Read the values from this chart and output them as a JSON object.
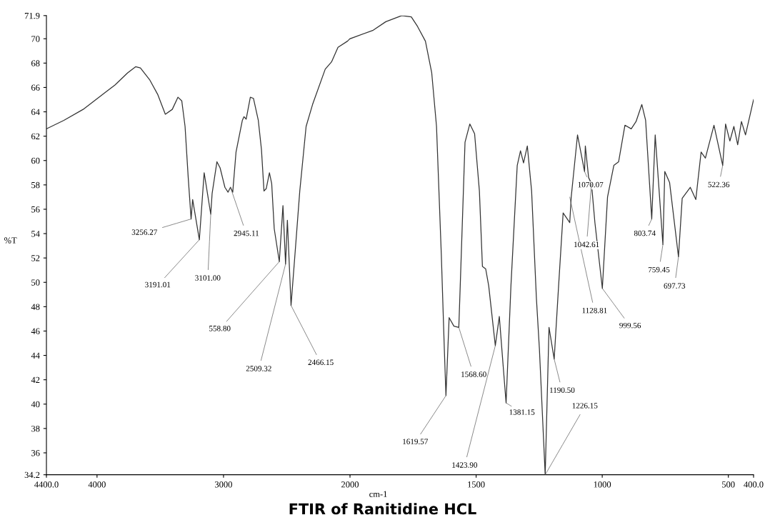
{
  "chart_data": [
    {
      "type": "line",
      "title": "FTIR of Ranitidine HCL",
      "ylabel": "%T",
      "xlim": [
        4400,
        2000
      ],
      "ylim": [
        34.2,
        71.9
      ],
      "xticks": [
        {
          "value": 4400,
          "label": "4400.0"
        },
        4000,
        3000
      ],
      "yticks": [
        34.2,
        36,
        38,
        40,
        42,
        44,
        46,
        48,
        50,
        52,
        54,
        56,
        58,
        60,
        62,
        64,
        66,
        68,
        70,
        71.9
      ],
      "marker": "none",
      "line_style": "solid",
      "series": [
        {
          "color": "#333333",
          "x": [
            4400,
            4262,
            4110,
            3934,
            3858,
            3758,
            3695,
            3657,
            3582,
            3519,
            3460,
            3405,
            3360,
            3330,
            3304,
            3279,
            3256.27,
            3244,
            3191.01,
            3153,
            3101,
            3090,
            3052,
            3027,
            2989,
            2964,
            2945.11,
            2927,
            2901,
            2851,
            2838,
            2821,
            2788,
            2763,
            2725,
            2700,
            2680,
            2662,
            2637,
            2619,
            2599,
            2558.8,
            2530,
            2509.32,
            2495,
            2466.15,
            2435,
            2397,
            2347,
            2296,
            2196,
            2146,
            2095,
            2020,
            2000
          ],
          "values": [
            62.6,
            63.3,
            64.2,
            65.6,
            66.2,
            67.2,
            67.7,
            67.6,
            66.6,
            65.4,
            63.8,
            64.2,
            65.2,
            64.9,
            62.8,
            58.6,
            55.2,
            56.8,
            53.5,
            59.0,
            55.6,
            57.3,
            59.9,
            59.4,
            57.8,
            57.4,
            57.8,
            57.4,
            60.7,
            63.3,
            63.6,
            63.4,
            65.2,
            65.1,
            63.3,
            60.9,
            57.5,
            57.7,
            59.0,
            58.1,
            54.4,
            51.7,
            56.3,
            51.5,
            55.1,
            48.1,
            52.3,
            57.5,
            62.8,
            64.6,
            67.5,
            68.1,
            69.3,
            69.8,
            70.0
          ]
        }
      ],
      "annotations": [
        {
          "text": "3256.27",
          "x": 3256.27,
          "y": 55.2
        },
        {
          "text": "3191.01",
          "x": 3191.01,
          "y": 53.5
        },
        {
          "text": "3101.00",
          "x": 3101,
          "y": 55.6
        },
        {
          "text": "2945.11",
          "x": 2945.11,
          "y": 57.8
        },
        {
          "text": "558.80",
          "x": 2558.8,
          "y": 51.7
        },
        {
          "text": "2509.32",
          "x": 2509.32,
          "y": 51.5
        },
        {
          "text": "2466.15",
          "x": 2466.15,
          "y": 48.1
        }
      ]
    },
    {
      "type": "line",
      "xlabel": "cm-1",
      "tick_labels": "x",
      "xlim": [
        2000,
        400
      ],
      "ylim": [
        34.2,
        71.9
      ],
      "xticks": [
        2000,
        1500,
        1000,
        500,
        {
          "value": 400,
          "label": "400.0"
        }
      ],
      "marker": "none",
      "line_style": "solid",
      "series": [
        {
          "color": "#333333",
          "x": [
            2000,
            1908,
            1858,
            1795,
            1757,
            1732,
            1701,
            1676,
            1657,
            1638,
            1626,
            1619.57,
            1607,
            1588,
            1568.6,
            1563,
            1544,
            1525,
            1506,
            1487,
            1475,
            1462,
            1450,
            1423.9,
            1408,
            1393,
            1381.15,
            1362,
            1337,
            1324,
            1312,
            1297,
            1280,
            1261,
            1249,
            1226.15,
            1211,
            1190.5,
            1173,
            1155,
            1128.81,
            1123,
            1098,
            1070.07,
            1067,
            1054,
            1042.61,
            1029,
            999.56,
            979,
            954,
            935,
            910,
            885,
            866,
            843,
            828,
            803.74,
            790,
            759.45,
            752,
            733,
            697.73,
            683,
            651,
            629,
            608,
            591,
            557,
            522.36,
            511,
            494,
            478,
            463,
            448,
            432,
            400
          ],
          "values": [
            70.0,
            70.7,
            71.4,
            71.9,
            71.8,
            71.0,
            69.8,
            67.2,
            62.8,
            52.3,
            44.5,
            40.7,
            47.1,
            46.4,
            46.3,
            49.7,
            61.5,
            63.0,
            62.2,
            57.5,
            51.3,
            51.1,
            49.7,
            44.8,
            47.2,
            43.2,
            40.1,
            49.7,
            59.6,
            60.8,
            59.8,
            61.2,
            57.5,
            48.7,
            44.5,
            34.2,
            46.3,
            43.7,
            49.7,
            55.7,
            54.9,
            57.0,
            62.1,
            59.1,
            61.2,
            58.6,
            58.1,
            54.9,
            49.5,
            57.0,
            59.6,
            59.9,
            62.9,
            62.6,
            63.2,
            64.6,
            63.3,
            55.2,
            62.1,
            53.1,
            59.1,
            58.2,
            52.1,
            56.9,
            57.8,
            56.8,
            60.7,
            60.2,
            62.9,
            59.6,
            63.0,
            61.6,
            62.8,
            61.3,
            63.2,
            62.1,
            65.0
          ]
        }
      ],
      "annotations": [
        {
          "text": "1619.57",
          "x": 1619.57,
          "y": 40.7
        },
        {
          "text": "1568.60",
          "x": 1568.6,
          "y": 46.3
        },
        {
          "text": "1423.90",
          "x": 1423.9,
          "y": 44.8
        },
        {
          "text": "1381.15",
          "x": 1381.15,
          "y": 40.1
        },
        {
          "text": "1226.15",
          "x": 1226.15,
          "y": 34.2
        },
        {
          "text": "1190.50",
          "x": 1190.5,
          "y": 43.7
        },
        {
          "text": "1128.81",
          "x": 1128.81,
          "y": 57.0
        },
        {
          "text": "1070.07",
          "x": 1070.07,
          "y": 59.1
        },
        {
          "text": "1042.61",
          "x": 1042.61,
          "y": 58.1
        },
        {
          "text": "999.56",
          "x": 999.56,
          "y": 49.5
        },
        {
          "text": "803.74",
          "x": 803.74,
          "y": 55.2
        },
        {
          "text": "759.45",
          "x": 759.45,
          "y": 53.1
        },
        {
          "text": "697.73",
          "x": 697.73,
          "y": 52.1
        },
        {
          "text": "522.36",
          "x": 522.36,
          "y": 59.6
        }
      ]
    }
  ]
}
